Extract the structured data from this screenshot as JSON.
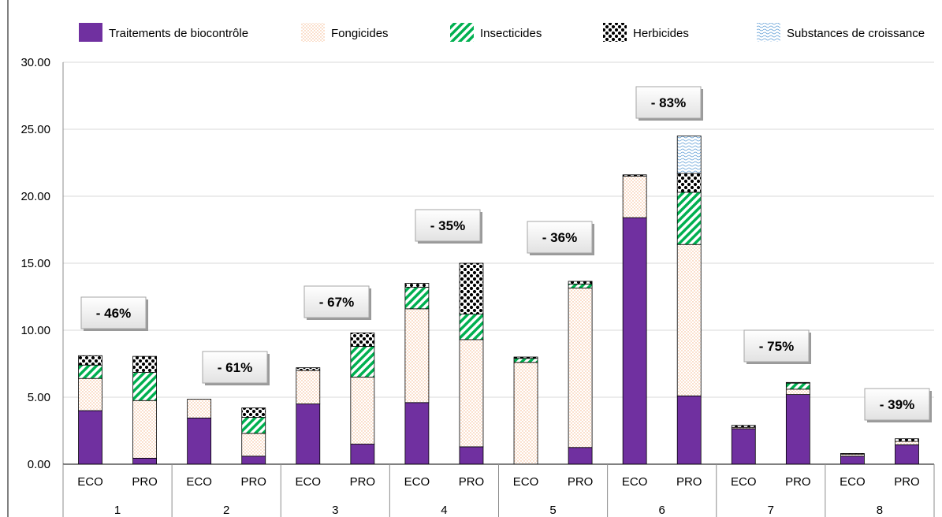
{
  "colors": {
    "biocontrole": "#7030a0",
    "fongicides_dot": "#f4b183",
    "insecticides_stripe": "#00b050",
    "herbicides_dot": "#000000",
    "croissance_wave": "#5b9bd5",
    "grid": "#d9d9d9"
  },
  "chart_data": {
    "type": "bar",
    "stacked": true,
    "ylim": [
      0,
      30
    ],
    "yticks": [
      "0.00",
      "5.00",
      "10.00",
      "15.00",
      "20.00",
      "25.00",
      "30.00"
    ],
    "ytick_values": [
      0,
      5,
      10,
      15,
      20,
      25,
      30
    ],
    "grid": true,
    "legend_position": "top",
    "groups": [
      "1",
      "2",
      "3",
      "4",
      "5",
      "6",
      "7",
      "8"
    ],
    "subcategories": [
      "ECO",
      "PRO"
    ],
    "callouts": [
      "- 46%",
      "- 61%",
      "- 67%",
      "- 35%",
      "- 36%",
      "- 83%",
      "- 75%",
      "- 39%"
    ],
    "series": [
      {
        "name": "Traitements de biocontrôle",
        "pattern": "solid",
        "values": [
          4.0,
          0.45,
          3.45,
          0.6,
          4.5,
          1.5,
          4.6,
          1.3,
          0.0,
          1.25,
          18.4,
          5.1,
          2.65,
          5.2,
          0.6,
          1.45
        ]
      },
      {
        "name": "Fongicides",
        "pattern": "dots-light",
        "values": [
          2.4,
          4.3,
          1.4,
          1.7,
          2.5,
          5.0,
          7.0,
          8.0,
          7.6,
          11.9,
          3.1,
          11.3,
          0.1,
          0.4,
          0.15,
          0.25
        ]
      },
      {
        "name": "Insecticides",
        "pattern": "stripes",
        "values": [
          1.0,
          2.1,
          0.0,
          1.2,
          0.0,
          2.3,
          1.6,
          1.9,
          0.3,
          0.3,
          0.0,
          3.9,
          0.0,
          0.45,
          0.0,
          0.0
        ]
      },
      {
        "name": "Herbicides",
        "pattern": "dots-dark",
        "values": [
          0.7,
          1.2,
          0.0,
          0.7,
          0.2,
          1.0,
          0.3,
          3.8,
          0.1,
          0.2,
          0.1,
          1.4,
          0.15,
          0.05,
          0.05,
          0.2
        ]
      },
      {
        "name": "Substances de croissance",
        "pattern": "waves",
        "values": [
          0,
          0,
          0,
          0,
          0,
          0,
          0,
          0,
          0,
          0,
          0,
          2.8,
          0,
          0,
          0,
          0
        ]
      }
    ]
  }
}
